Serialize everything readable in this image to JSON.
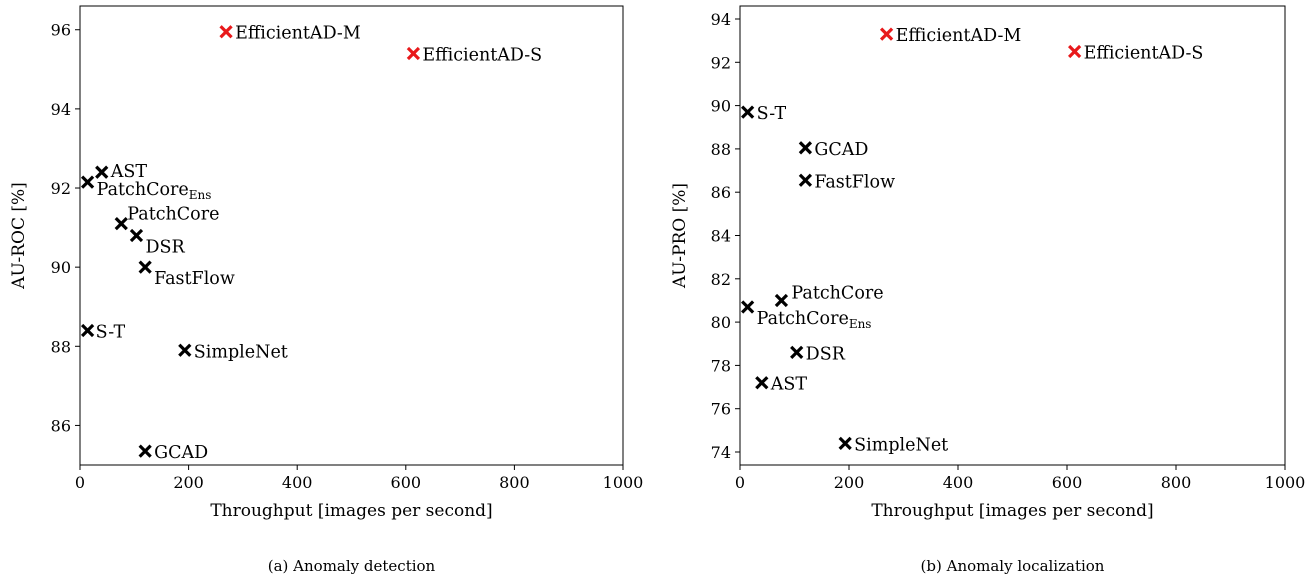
{
  "chart_data": [
    {
      "type": "scatter",
      "caption": "(a)  Anomaly detection",
      "xlabel": "Throughput [images per second]",
      "ylabel": "AU-ROC [%]",
      "xlim": [
        0,
        1000
      ],
      "ylim": [
        85,
        96.6
      ],
      "xticks": [
        0,
        200,
        400,
        600,
        800,
        1000
      ],
      "yticks": [
        86,
        88,
        90,
        92,
        94,
        96
      ],
      "grid": false,
      "points": [
        {
          "label": "EfficientAD-M",
          "x": 269,
          "y": 95.95,
          "highlight": true
        },
        {
          "label": "EfficientAD-S",
          "x": 614,
          "y": 95.4,
          "highlight": true
        },
        {
          "label": "AST",
          "x": 40,
          "y": 92.4
        },
        {
          "label": "PatchCore",
          "sub": "Ens",
          "x": 14,
          "y": 92.15
        },
        {
          "label": "PatchCore",
          "x": 76,
          "y": 91.1
        },
        {
          "label": "DSR",
          "x": 104,
          "y": 90.8
        },
        {
          "label": "FastFlow",
          "x": 120,
          "y": 90.0
        },
        {
          "label": "S-T",
          "x": 14,
          "y": 88.4
        },
        {
          "label": "SimpleNet",
          "x": 193,
          "y": 87.9
        },
        {
          "label": "GCAD",
          "x": 120,
          "y": 85.35
        }
      ]
    },
    {
      "type": "scatter",
      "caption": "(b)  Anomaly localization",
      "xlabel": "Throughput [images per second]",
      "ylabel": "AU-PRO [%]",
      "xlim": [
        0,
        1000
      ],
      "ylim": [
        73.4,
        94.6
      ],
      "xticks": [
        0,
        200,
        400,
        600,
        800,
        1000
      ],
      "yticks": [
        74,
        76,
        78,
        80,
        82,
        84,
        86,
        88,
        90,
        92,
        94
      ],
      "grid": false,
      "points": [
        {
          "label": "EfficientAD-M",
          "x": 269,
          "y": 93.3,
          "highlight": true
        },
        {
          "label": "EfficientAD-S",
          "x": 614,
          "y": 92.5,
          "highlight": true
        },
        {
          "label": "S-T",
          "x": 14,
          "y": 89.7
        },
        {
          "label": "GCAD",
          "x": 120,
          "y": 88.05
        },
        {
          "label": "FastFlow",
          "x": 120,
          "y": 86.55
        },
        {
          "label": "PatchCore",
          "x": 76,
          "y": 81.0
        },
        {
          "label": "PatchCore",
          "sub": "Ens",
          "x": 14,
          "y": 80.7
        },
        {
          "label": "DSR",
          "x": 104,
          "y": 78.6
        },
        {
          "label": "AST",
          "x": 40,
          "y": 77.2
        },
        {
          "label": "SimpleNet",
          "x": 193,
          "y": 74.4
        }
      ]
    }
  ],
  "colors": {
    "highlight": "#e8191b",
    "default": "#000000"
  }
}
